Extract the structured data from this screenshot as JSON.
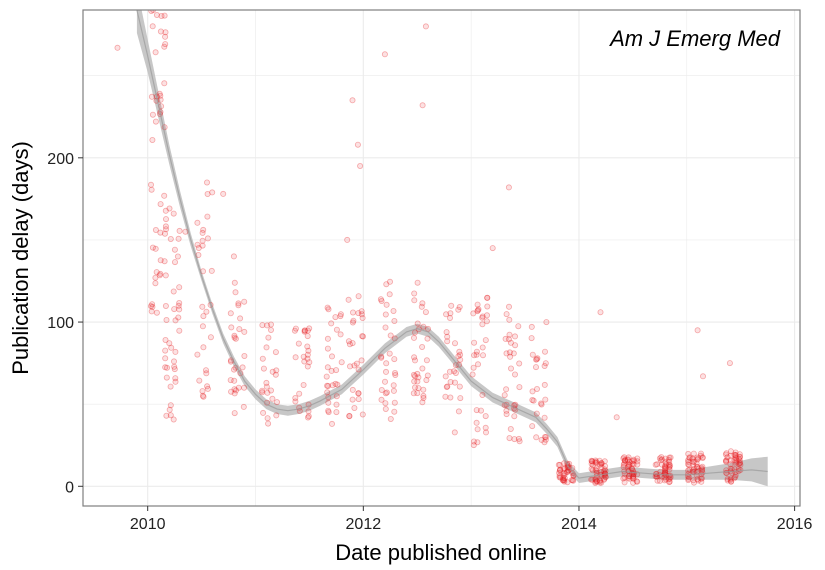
{
  "chart_data": {
    "type": "scatter",
    "title": "",
    "annotation": "Am J Emerg Med",
    "xlabel": "Date published online",
    "ylabel": "Publication delay (days)",
    "xlim": [
      2009.4,
      2016.05
    ],
    "ylim": [
      -12,
      290
    ],
    "x_ticks": [
      2010,
      2012,
      2014,
      2016
    ],
    "x_tick_labels": [
      "2010",
      "2012",
      "2014",
      "2016"
    ],
    "y_ticks": [
      0,
      100,
      200
    ],
    "y_tick_labels": [
      "0",
      "100",
      "200"
    ],
    "grid": true,
    "colors": {
      "points": "#e41a1c",
      "smooth_band": "#bdbdbd",
      "smooth_line": "#9a9a9a",
      "grid": "#ebebeb",
      "panel_border": "#7f7f7f"
    },
    "smooth": {
      "x": [
        2009.9,
        2010.0,
        2010.1,
        2010.2,
        2010.3,
        2010.4,
        2010.5,
        2010.6,
        2010.7,
        2010.8,
        2010.9,
        2011.0,
        2011.1,
        2011.2,
        2011.3,
        2011.4,
        2011.5,
        2011.6,
        2011.8,
        2012.0,
        2012.2,
        2012.4,
        2012.5,
        2012.6,
        2012.7,
        2012.8,
        2012.9,
        2013.0,
        2013.2,
        2013.4,
        2013.6,
        2013.7,
        2013.8,
        2013.9,
        2014.0,
        2014.2,
        2014.4,
        2014.6,
        2014.8,
        2015.0,
        2015.2,
        2015.4,
        2015.6,
        2015.75
      ],
      "y": [
        290,
        262,
        232,
        202,
        175,
        150,
        128,
        108,
        90,
        76,
        64,
        56,
        50,
        47,
        46,
        47,
        49,
        52,
        59,
        71,
        84,
        94,
        96,
        94,
        88,
        80,
        72,
        64,
        54,
        48,
        42,
        35,
        27,
        12,
        5,
        7,
        9,
        8,
        7,
        7,
        8,
        9,
        10,
        9
      ],
      "band_half_width": [
        14,
        10,
        8,
        6,
        5,
        4,
        3,
        3,
        3,
        3,
        3,
        3,
        3,
        3,
        3,
        3,
        3,
        3,
        3,
        3,
        3,
        3,
        3,
        3,
        3,
        3,
        3,
        3,
        3,
        3,
        3,
        3,
        3,
        3,
        3,
        3,
        3,
        3,
        3,
        3,
        4,
        5,
        7,
        9
      ]
    },
    "scatter_clusters": [
      {
        "x": 2010.12,
        "y_min": 100,
        "y_max": 290,
        "n": 50
      },
      {
        "x": 2010.25,
        "y_min": 40,
        "y_max": 170,
        "n": 40
      },
      {
        "x": 2010.55,
        "y_min": 50,
        "y_max": 180,
        "n": 30
      },
      {
        "x": 2010.85,
        "y_min": 38,
        "y_max": 125,
        "n": 30
      },
      {
        "x": 2011.15,
        "y_min": 38,
        "y_max": 100,
        "n": 25
      },
      {
        "x": 2011.45,
        "y_min": 35,
        "y_max": 100,
        "n": 28
      },
      {
        "x": 2011.75,
        "y_min": 35,
        "y_max": 110,
        "n": 30
      },
      {
        "x": 2011.95,
        "y_min": 40,
        "y_max": 120,
        "n": 28
      },
      {
        "x": 2012.25,
        "y_min": 40,
        "y_max": 125,
        "n": 32
      },
      {
        "x": 2012.55,
        "y_min": 35,
        "y_max": 130,
        "n": 34
      },
      {
        "x": 2012.85,
        "y_min": 30,
        "y_max": 110,
        "n": 30
      },
      {
        "x": 2013.1,
        "y_min": 25,
        "y_max": 120,
        "n": 34
      },
      {
        "x": 2013.4,
        "y_min": 25,
        "y_max": 110,
        "n": 34
      },
      {
        "x": 2013.65,
        "y_min": 25,
        "y_max": 100,
        "n": 28
      },
      {
        "x": 2013.9,
        "y_min": 2,
        "y_max": 14,
        "n": 40
      },
      {
        "x": 2014.2,
        "y_min": 2,
        "y_max": 16,
        "n": 50
      },
      {
        "x": 2014.5,
        "y_min": 2,
        "y_max": 18,
        "n": 50
      },
      {
        "x": 2014.8,
        "y_min": 2,
        "y_max": 18,
        "n": 50
      },
      {
        "x": 2015.1,
        "y_min": 2,
        "y_max": 20,
        "n": 50
      },
      {
        "x": 2015.45,
        "y_min": 2,
        "y_max": 22,
        "n": 50
      }
    ],
    "outliers": [
      {
        "x": 2009.72,
        "y": 267
      },
      {
        "x": 2010.05,
        "y": 290
      },
      {
        "x": 2010.35,
        "y": 155
      },
      {
        "x": 2010.55,
        "y": 185
      },
      {
        "x": 2010.7,
        "y": 178
      },
      {
        "x": 2010.8,
        "y": 140
      },
      {
        "x": 2011.85,
        "y": 150
      },
      {
        "x": 2011.9,
        "y": 235
      },
      {
        "x": 2011.95,
        "y": 208
      },
      {
        "x": 2011.97,
        "y": 195
      },
      {
        "x": 2012.2,
        "y": 263
      },
      {
        "x": 2012.55,
        "y": 232
      },
      {
        "x": 2012.58,
        "y": 280
      },
      {
        "x": 2013.2,
        "y": 145
      },
      {
        "x": 2013.35,
        "y": 182
      },
      {
        "x": 2014.2,
        "y": 106
      },
      {
        "x": 2015.1,
        "y": 95
      },
      {
        "x": 2015.4,
        "y": 75
      },
      {
        "x": 2015.15,
        "y": 67
      },
      {
        "x": 2014.35,
        "y": 42
      }
    ]
  }
}
